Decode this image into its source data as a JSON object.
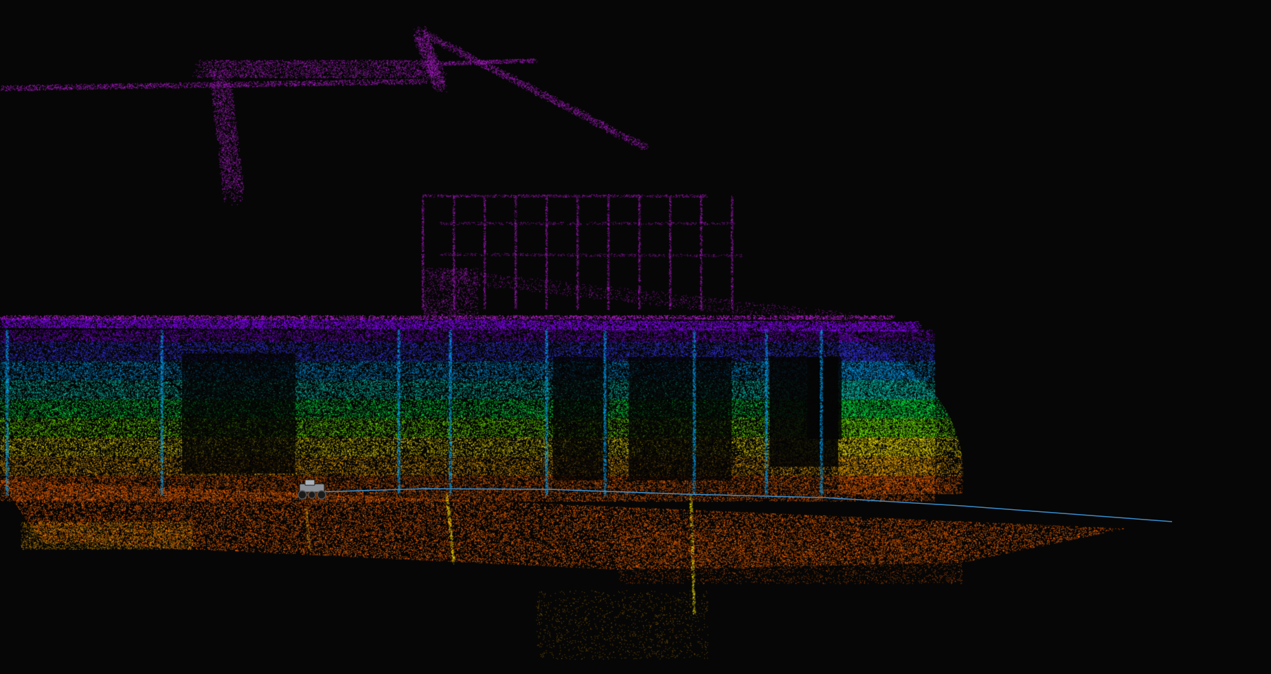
{
  "scene": {
    "background_color": "#060606",
    "colormap": [
      "#ff6a00",
      "#ffb000",
      "#ffee00",
      "#7dff00",
      "#00ff4a",
      "#00e0c8",
      "#00a8ff",
      "#3a3aff",
      "#8a00ff",
      "#c020e0"
    ],
    "trajectory_color": "#3a8fd0",
    "robot_icon": "robot-rover-icon"
  }
}
